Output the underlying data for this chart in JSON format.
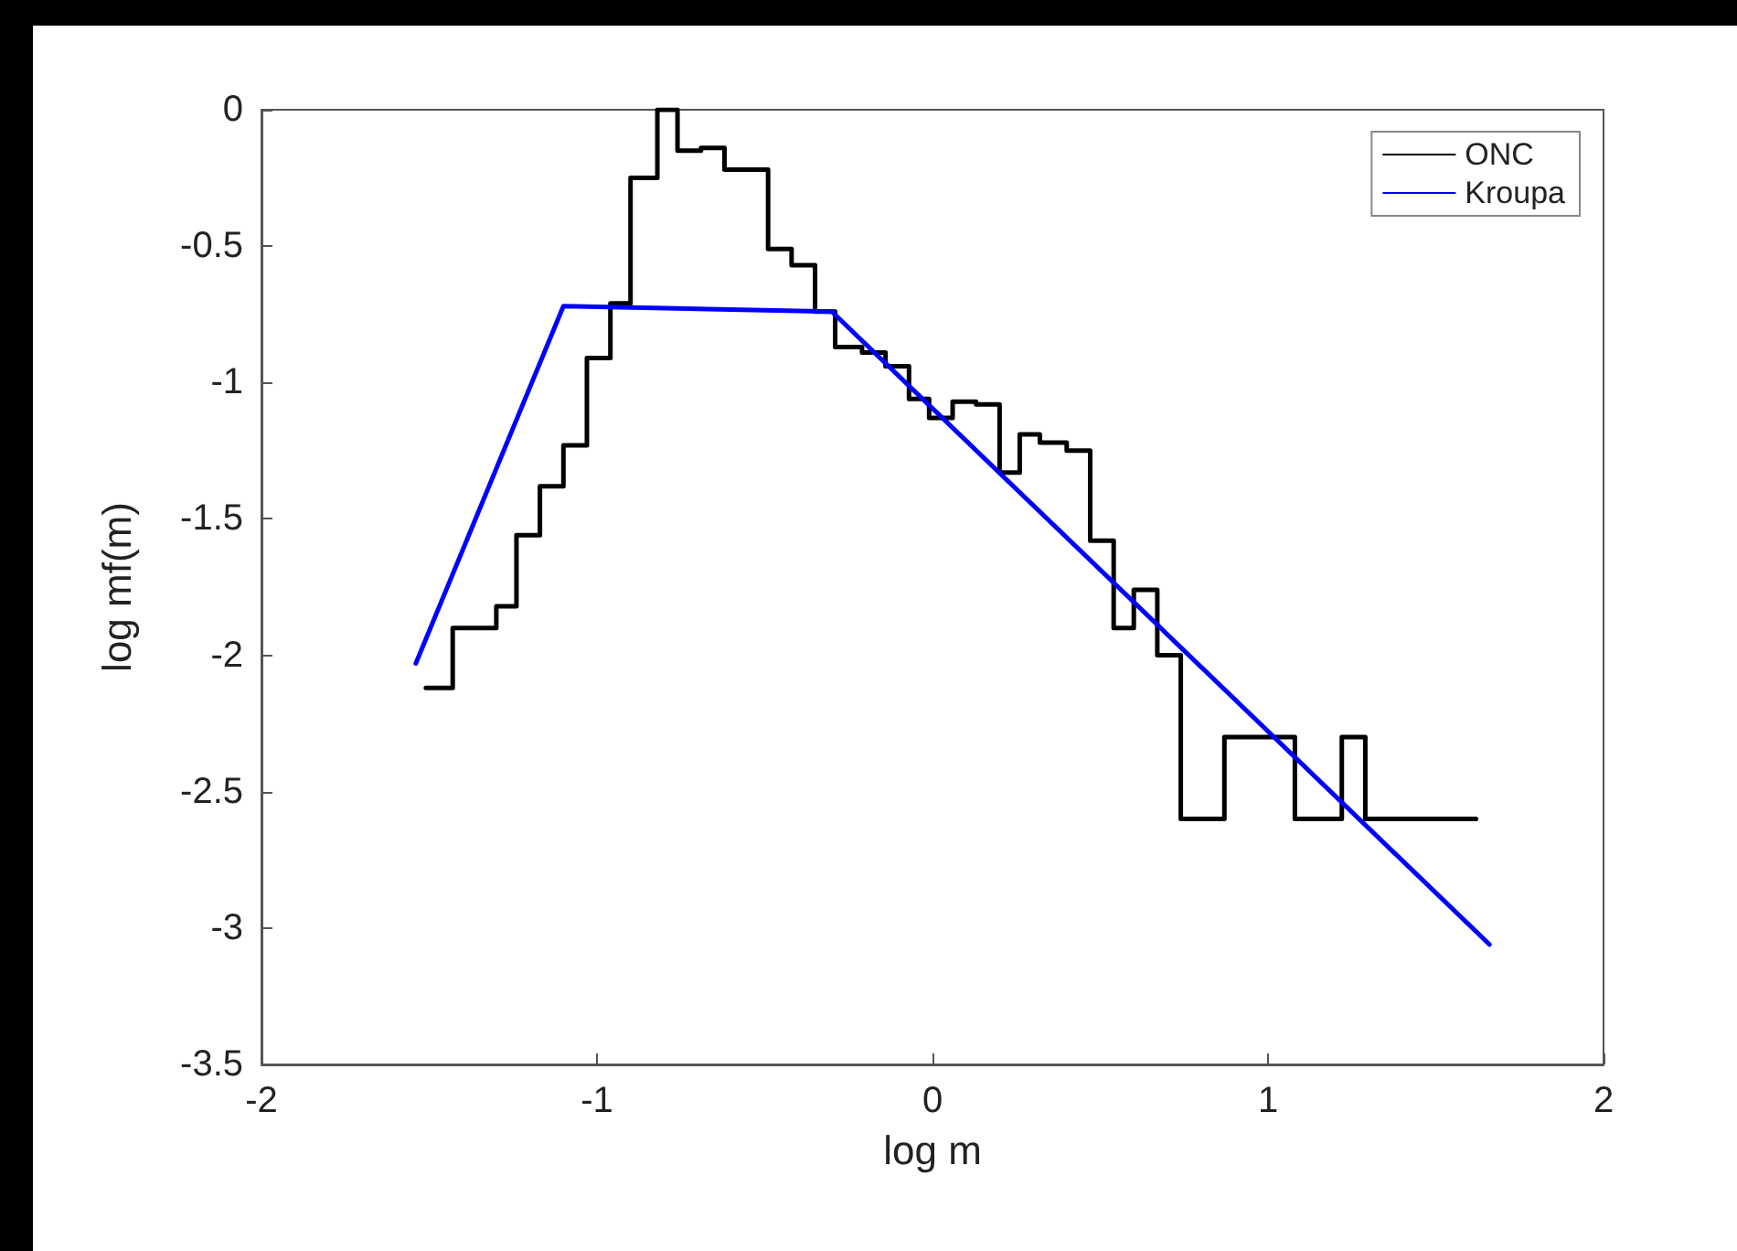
{
  "chart_data": {
    "type": "line",
    "xlabel": "log m",
    "ylabel": "log mf(m)",
    "xlim": [
      -2,
      2
    ],
    "xticks": [
      -2,
      -1,
      0,
      1,
      2
    ],
    "ylim": [
      -3.5,
      0
    ],
    "yticks": [
      -3.5,
      -3,
      -2.5,
      -2,
      -1.5,
      -1,
      -0.5,
      0
    ],
    "grid": false,
    "legend": "top right",
    "line_style": "solid",
    "marker": "none",
    "series": [
      {
        "name": "ONC",
        "type": "step",
        "color": "#000000",
        "x": [
          -1.51,
          -1.43,
          -1.3,
          -1.24,
          -1.17,
          -1.1,
          -1.03,
          -0.96,
          -0.9,
          -0.82,
          -0.76,
          -0.69,
          -0.62,
          -0.49,
          -0.42,
          -0.35,
          -0.29,
          -0.21,
          -0.14,
          -0.07,
          -0.01,
          0.06,
          0.13,
          0.2,
          0.26,
          0.32,
          0.4,
          0.47,
          0.54,
          0.6,
          0.67,
          0.74,
          0.87,
          1.08,
          1.22,
          1.29,
          1.62
        ],
        "values": [
          -2.12,
          -1.9,
          -1.82,
          -1.56,
          -1.38,
          -1.23,
          -0.91,
          -0.71,
          -0.25,
          0,
          -0.15,
          -0.14,
          -0.22,
          -0.51,
          -0.57,
          -0.74,
          -0.87,
          -0.89,
          -0.94,
          -1.06,
          -1.13,
          -1.07,
          -1.08,
          -1.33,
          -1.19,
          -1.22,
          -1.25,
          -1.58,
          -1.9,
          -1.76,
          -2.0,
          -2.6,
          -2.3,
          -2.6,
          -2.3,
          -2.6,
          -2.6
        ]
      },
      {
        "name": "Kroupa",
        "color": "#0000ff",
        "x": [
          -1.54,
          -1.1,
          -0.3,
          1.66
        ],
        "values": [
          -2.03,
          -0.72,
          -0.74,
          -3.06
        ]
      }
    ]
  }
}
